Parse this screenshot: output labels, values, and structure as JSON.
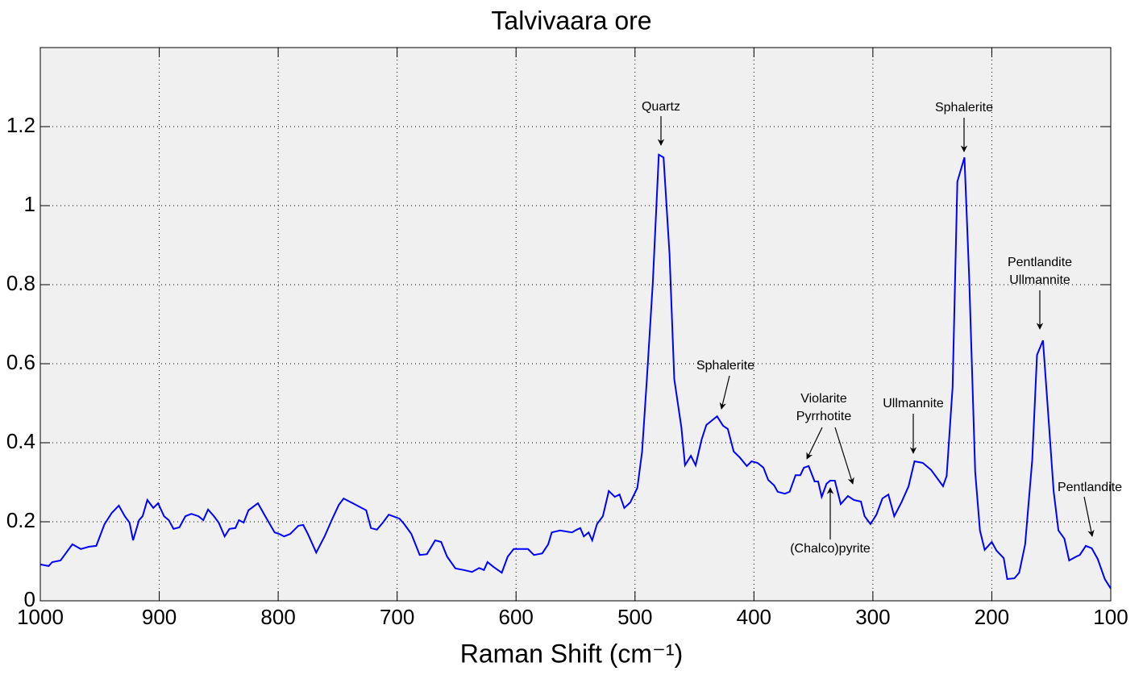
{
  "chart_data": {
    "type": "line",
    "title": "Talvivaara ore",
    "xlabel": "Raman Shift (cm⁻¹)",
    "xlim": [
      1000,
      100
    ],
    "xticks": [
      1000,
      900,
      800,
      700,
      600,
      500,
      400,
      300,
      200,
      100
    ],
    "ylim": [
      0,
      1.4
    ],
    "yticks": [
      0,
      0.2,
      0.4,
      0.6,
      0.8,
      1,
      1.2
    ],
    "grid": true,
    "color": "#0000ff",
    "x": [
      1000,
      993,
      990,
      983,
      973,
      966,
      959,
      953,
      946,
      940,
      934,
      929,
      925,
      922,
      917,
      914,
      910,
      905,
      901,
      896,
      892,
      888,
      883,
      878,
      873,
      867,
      863,
      859,
      854,
      850,
      845,
      841,
      836,
      833,
      829,
      825,
      817,
      812,
      803,
      799,
      795,
      790,
      783,
      779,
      775,
      768,
      761,
      755,
      749,
      745,
      736,
      726,
      722,
      717,
      712,
      707,
      698,
      694,
      688,
      681,
      675,
      668,
      663,
      658,
      651,
      644,
      637,
      631,
      627,
      624,
      619,
      612,
      607,
      602,
      590,
      585,
      578,
      573,
      570,
      563,
      553,
      549,
      546,
      543,
      539,
      536,
      532,
      527,
      522,
      517,
      513,
      509,
      504,
      498,
      494,
      490,
      485,
      480,
      476,
      471,
      467,
      461,
      458,
      453,
      449,
      444,
      440,
      431,
      426,
      422,
      417,
      412,
      406,
      402,
      397,
      392,
      388,
      383,
      380,
      374,
      370,
      365,
      361,
      358,
      354,
      349,
      346,
      343,
      339,
      336,
      332,
      327,
      321,
      316,
      310,
      307,
      302,
      297,
      292,
      287,
      282,
      276,
      270,
      265,
      258,
      251,
      241,
      238,
      233,
      229,
      223,
      219,
      214,
      210,
      206,
      200,
      196,
      190,
      187,
      181,
      177,
      172,
      166,
      162,
      157,
      153,
      148,
      144,
      139,
      135,
      129,
      126,
      121,
      116,
      111,
      105,
      100
    ],
    "values": [
      0.092,
      0.088,
      0.098,
      0.102,
      0.143,
      0.131,
      0.137,
      0.139,
      0.194,
      0.222,
      0.241,
      0.214,
      0.198,
      0.153,
      0.204,
      0.214,
      0.255,
      0.235,
      0.247,
      0.214,
      0.204,
      0.182,
      0.186,
      0.214,
      0.22,
      0.214,
      0.204,
      0.231,
      0.214,
      0.198,
      0.163,
      0.182,
      0.184,
      0.204,
      0.198,
      0.229,
      0.247,
      0.22,
      0.173,
      0.169,
      0.163,
      0.169,
      0.19,
      0.192,
      0.169,
      0.122,
      0.163,
      0.204,
      0.243,
      0.259,
      0.245,
      0.229,
      0.184,
      0.18,
      0.198,
      0.218,
      0.208,
      0.194,
      0.169,
      0.116,
      0.118,
      0.153,
      0.149,
      0.112,
      0.082,
      0.078,
      0.073,
      0.083,
      0.078,
      0.098,
      0.086,
      0.071,
      0.112,
      0.131,
      0.131,
      0.116,
      0.12,
      0.143,
      0.173,
      0.178,
      0.173,
      0.18,
      0.184,
      0.163,
      0.173,
      0.153,
      0.194,
      0.214,
      0.278,
      0.263,
      0.269,
      0.235,
      0.249,
      0.286,
      0.378,
      0.561,
      0.806,
      1.129,
      1.122,
      0.878,
      0.561,
      0.439,
      0.343,
      0.367,
      0.343,
      0.408,
      0.445,
      0.467,
      0.443,
      0.435,
      0.378,
      0.363,
      0.341,
      0.353,
      0.349,
      0.337,
      0.306,
      0.292,
      0.276,
      0.271,
      0.276,
      0.318,
      0.318,
      0.337,
      0.341,
      0.302,
      0.302,
      0.263,
      0.296,
      0.304,
      0.304,
      0.245,
      0.265,
      0.255,
      0.251,
      0.214,
      0.194,
      0.218,
      0.259,
      0.269,
      0.214,
      0.249,
      0.29,
      0.353,
      0.349,
      0.331,
      0.29,
      0.316,
      0.541,
      1.061,
      1.122,
      0.816,
      0.327,
      0.178,
      0.129,
      0.149,
      0.127,
      0.108,
      0.055,
      0.057,
      0.071,
      0.143,
      0.357,
      0.622,
      0.659,
      0.49,
      0.276,
      0.178,
      0.157,
      0.102,
      0.112,
      0.116,
      0.139,
      0.133,
      0.106,
      0.055,
      0.031
    ],
    "annotations": [
      {
        "text": [
          "Quartz"
        ]
      },
      {
        "text": [
          "Sphalerite"
        ]
      },
      {
        "text": [
          "Violarite",
          "Pyrrhotite"
        ]
      },
      {
        "text": [
          "(Chalco)pyrite"
        ]
      },
      {
        "text": [
          "Ullmannite"
        ]
      },
      {
        "text": [
          "Sphalerite"
        ]
      },
      {
        "text": [
          "Pentlandite",
          "Ullmannite"
        ]
      },
      {
        "text": [
          "Pentlandite"
        ]
      }
    ]
  }
}
